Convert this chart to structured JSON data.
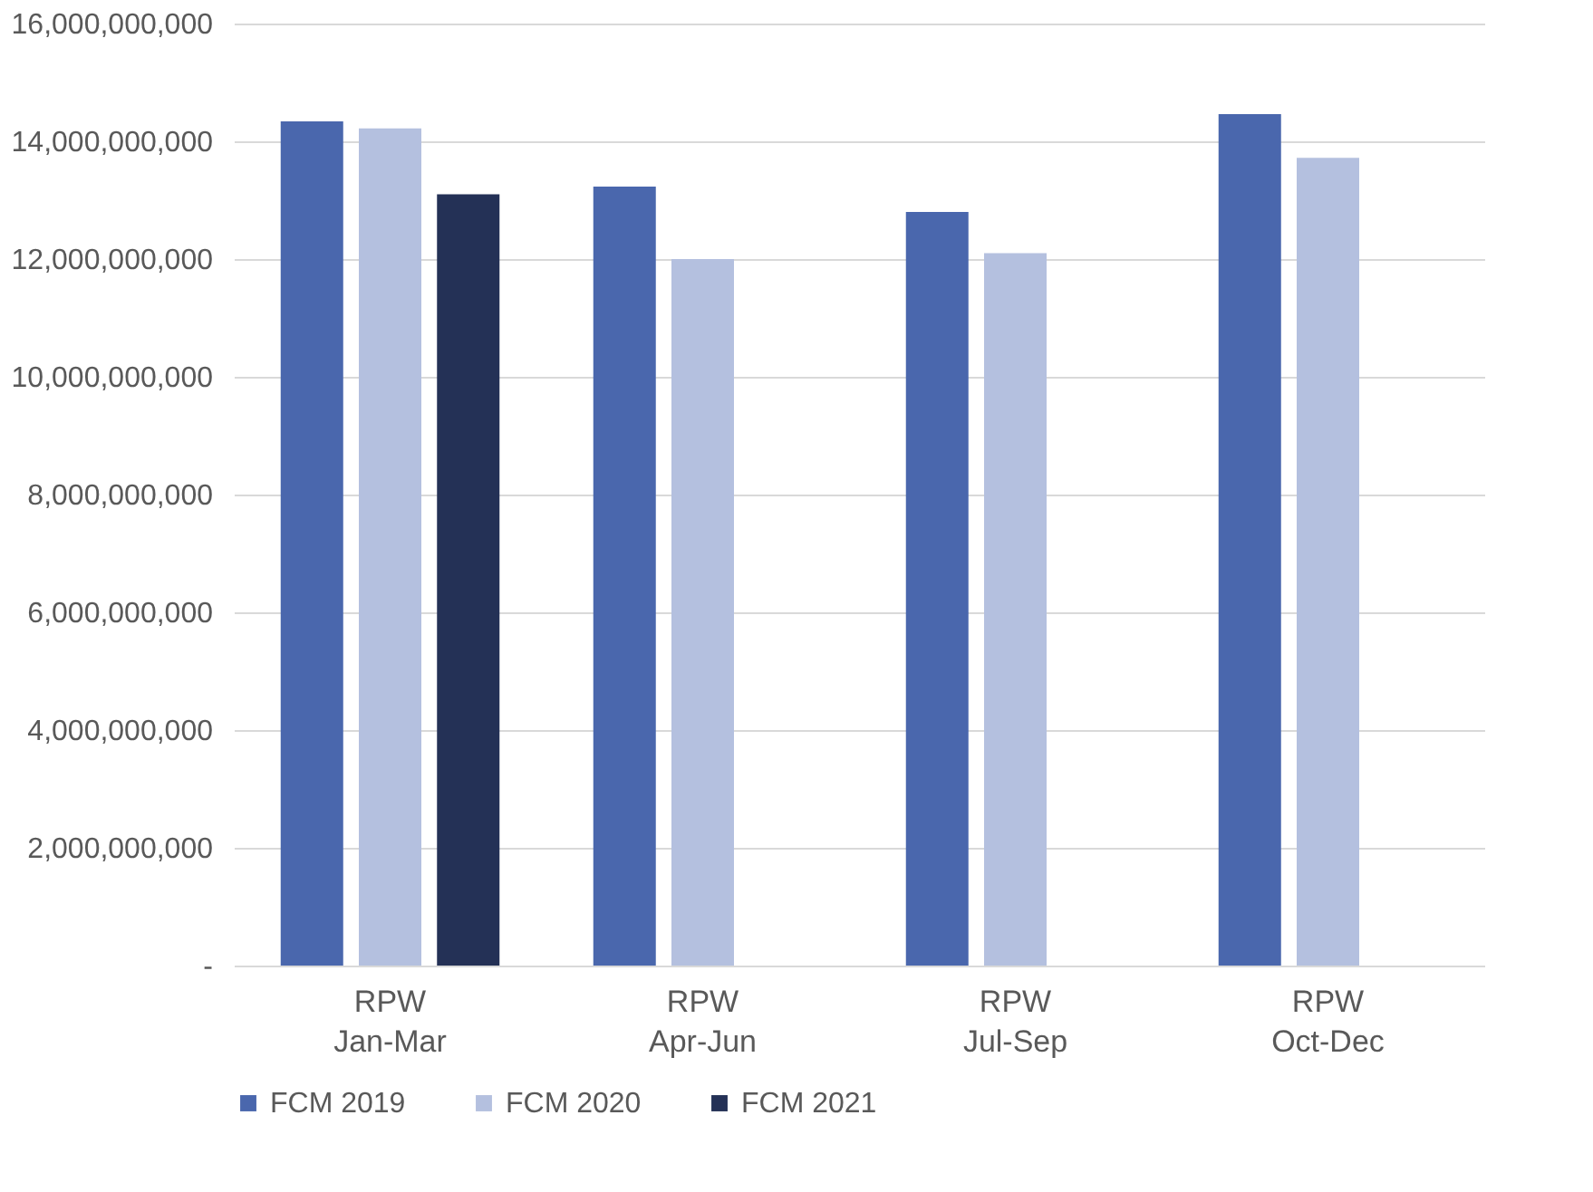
{
  "chart_data": {
    "type": "bar",
    "categories": [
      "RPW\nJan-Mar",
      "RPW\nApr-Jun",
      "RPW\nJul-Sep",
      "RPW\nOct-Dec"
    ],
    "series": [
      {
        "name": "FCM  2019",
        "color": "#4a67ad",
        "values": [
          14340000000,
          13230000000,
          12800000000,
          14460000000
        ]
      },
      {
        "name": "FCM  2020",
        "color": "#b4c0df",
        "values": [
          14220000000,
          12000000000,
          12100000000,
          13720000000
        ]
      },
      {
        "name": "FCM  2021",
        "color": "#243156",
        "values": [
          13100000000,
          null,
          null,
          null
        ]
      }
    ],
    "ylim": [
      0,
      16000000000
    ],
    "yticks": [
      {
        "value": 0,
        "label": "-"
      },
      {
        "value": 2000000000,
        "label": "2,000,000,000"
      },
      {
        "value": 4000000000,
        "label": "4,000,000,000"
      },
      {
        "value": 6000000000,
        "label": "6,000,000,000"
      },
      {
        "value": 8000000000,
        "label": "8,000,000,000"
      },
      {
        "value": 10000000000,
        "label": "10,000,000,000"
      },
      {
        "value": 12000000000,
        "label": "12,000,000,000"
      },
      {
        "value": 14000000000,
        "label": "14,000,000,000"
      },
      {
        "value": 16000000000,
        "label": "16,000,000,000"
      }
    ],
    "grid": "y",
    "legend": "bottom"
  }
}
